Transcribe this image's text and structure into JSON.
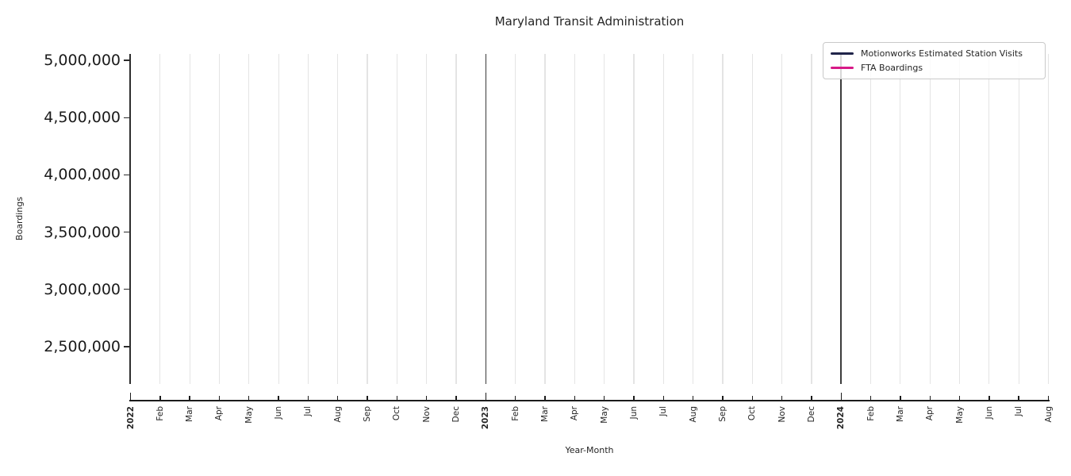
{
  "chart_data": {
    "type": "line",
    "title": "Maryland Transit Administration",
    "xlabel": "Year-Month",
    "ylabel": "Boardings",
    "categories": [
      "2022",
      "Feb",
      "Mar",
      "Apr",
      "May",
      "Jun",
      "Jul",
      "Aug",
      "Sep",
      "Oct",
      "Nov",
      "Dec",
      "2023",
      "Feb",
      "Mar",
      "Apr",
      "May",
      "Jun",
      "Jul",
      "Aug",
      "Sep",
      "Oct",
      "Nov",
      "Dec",
      "2024",
      "Feb",
      "Mar",
      "Apr",
      "May",
      "Jun",
      "Jul",
      "Aug"
    ],
    "year_tick_indices": [
      0,
      12,
      24
    ],
    "year_divider_indices": [
      12,
      24
    ],
    "ytick_labels": [
      "5,000,000",
      "4,500,000",
      "4,000,000",
      "3,500,000",
      "3,000,000",
      "2,500,000"
    ],
    "ytick_values": [
      5000000,
      4500000,
      4000000,
      3500000,
      3000000,
      2500000
    ],
    "ylim": [
      2175000,
      5060000
    ],
    "grid": "vertical-monthly-only",
    "legend_position": "upper-right",
    "series": [
      {
        "name": "Motionworks Estimated Station Visits",
        "color": "#202449",
        "values": []
      },
      {
        "name": "FTA Boardings",
        "color": "#d71987",
        "values": []
      }
    ]
  },
  "colors": {
    "background": "#ffffff",
    "gridline": "#e4e4e4",
    "year_divider": "#3b3b3b",
    "axis_spine": "#1c1c1c",
    "text": "#262626"
  }
}
